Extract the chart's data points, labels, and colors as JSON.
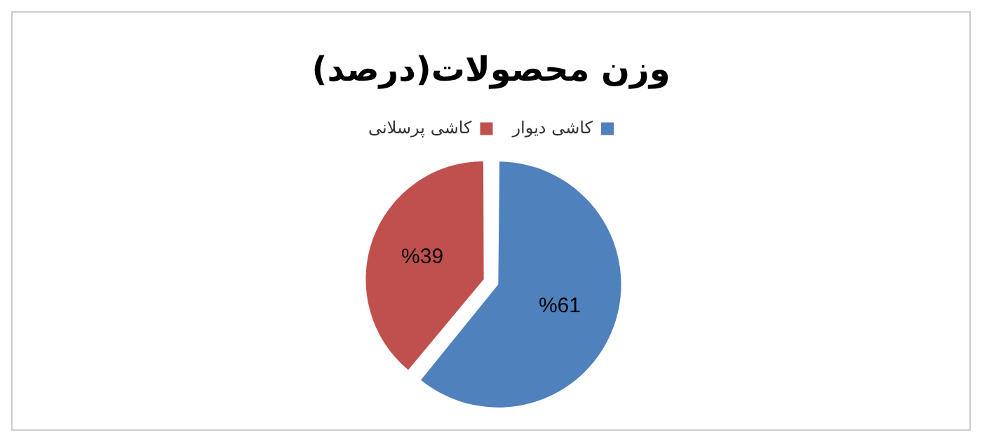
{
  "chart_data": {
    "type": "pie",
    "title": "وزن محصولات(درصد)",
    "categories": [
      "کاشی دیوار",
      "کاشی پرسلانی"
    ],
    "values": [
      61,
      39
    ],
    "colors": [
      "#4f81bd",
      "#c0504d"
    ],
    "value_labels": [
      "%61",
      "%39"
    ],
    "legend": "top"
  }
}
